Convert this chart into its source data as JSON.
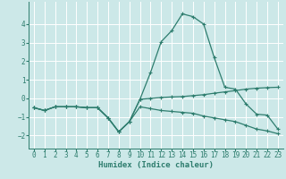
{
  "xlabel": "Humidex (Indice chaleur)",
  "bg_color": "#cce8e8",
  "grid_color": "#ffffff",
  "line_color": "#2e7d6e",
  "xlim": [
    -0.5,
    23.5
  ],
  "ylim": [
    -2.7,
    5.2
  ],
  "xticks": [
    0,
    1,
    2,
    3,
    4,
    5,
    6,
    7,
    8,
    9,
    10,
    11,
    12,
    13,
    14,
    15,
    16,
    17,
    18,
    19,
    20,
    21,
    22,
    23
  ],
  "yticks": [
    -2,
    -1,
    0,
    1,
    2,
    3,
    4
  ],
  "line1_x": [
    0,
    1,
    2,
    3,
    4,
    5,
    6,
    7,
    8,
    9,
    10,
    11,
    12,
    13,
    14,
    15,
    16,
    17,
    18,
    19,
    20,
    21,
    22,
    23
  ],
  "line1_y": [
    -0.5,
    -0.65,
    -0.45,
    -0.45,
    -0.45,
    -0.5,
    -0.5,
    -1.05,
    -1.8,
    -1.25,
    -0.05,
    0.0,
    0.05,
    0.08,
    0.1,
    0.15,
    0.2,
    0.28,
    0.35,
    0.42,
    0.5,
    0.55,
    0.58,
    0.6
  ],
  "line2_x": [
    0,
    1,
    2,
    3,
    4,
    5,
    6,
    7,
    8,
    9,
    10,
    11,
    12,
    13,
    14,
    15,
    16,
    17,
    18,
    19,
    20,
    21,
    22,
    23
  ],
  "line2_y": [
    -0.5,
    -0.65,
    -0.45,
    -0.45,
    -0.45,
    -0.5,
    -0.5,
    -1.05,
    -1.8,
    -1.25,
    -0.05,
    1.4,
    3.05,
    3.65,
    4.55,
    4.4,
    4.0,
    2.2,
    0.6,
    0.5,
    -0.3,
    -0.85,
    -0.9,
    -1.65
  ],
  "line3_x": [
    0,
    1,
    2,
    3,
    4,
    5,
    6,
    7,
    8,
    9,
    10,
    11,
    12,
    13,
    14,
    15,
    16,
    17,
    18,
    19,
    20,
    21,
    22,
    23
  ],
  "line3_y": [
    -0.5,
    -0.65,
    -0.45,
    -0.45,
    -0.45,
    -0.5,
    -0.5,
    -1.05,
    -1.8,
    -1.25,
    -0.45,
    -0.55,
    -0.65,
    -0.7,
    -0.75,
    -0.8,
    -0.95,
    -1.05,
    -1.15,
    -1.25,
    -1.45,
    -1.65,
    -1.75,
    -1.9
  ]
}
